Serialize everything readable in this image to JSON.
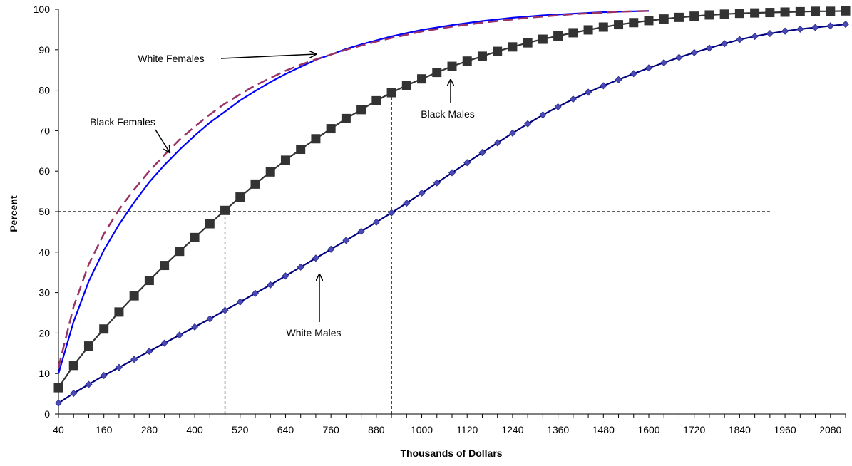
{
  "chart_data": {
    "type": "line",
    "xlabel": "Thousands of Dollars",
    "ylabel": "Percent",
    "xlim": [
      40,
      2120
    ],
    "ylim": [
      0,
      100
    ],
    "x_ticks": [
      40,
      160,
      280,
      400,
      520,
      640,
      760,
      880,
      1000,
      1120,
      1240,
      1360,
      1480,
      1600,
      1720,
      1840,
      1960,
      2080
    ],
    "y_ticks": [
      0,
      10,
      20,
      30,
      40,
      50,
      60,
      70,
      80,
      90,
      100
    ],
    "grid": false,
    "legend": "none",
    "series": [
      {
        "name": "White Females",
        "color": "#0000ff",
        "style": "solid",
        "marker": "none",
        "x": [
          40,
          80,
          120,
          160,
          200,
          240,
          280,
          320,
          360,
          400,
          440,
          480,
          520,
          560,
          600,
          640,
          680,
          720,
          760,
          800,
          840,
          880,
          920,
          960,
          1000,
          1040,
          1080,
          1120,
          1160,
          1200,
          1240,
          1280,
          1320,
          1360,
          1400,
          1440,
          1480,
          1520,
          1560,
          1600
        ],
        "y": [
          10,
          22.8,
          32.8,
          40.5,
          46.8,
          52.3,
          57.3,
          61.5,
          65.3,
          68.8,
          72,
          74.7,
          77.5,
          79.8,
          82,
          84,
          85.8,
          87.5,
          88.8,
          90.2,
          91.3,
          92.3,
          93.3,
          94.1,
          94.9,
          95.5,
          96.1,
          96.6,
          97.1,
          97.5,
          97.9,
          98.2,
          98.5,
          98.7,
          98.9,
          99.1,
          99.3,
          99.4,
          99.5,
          99.6
        ]
      },
      {
        "name": "Black Females",
        "color": "#993366",
        "style": "dashed",
        "marker": "none",
        "x": [
          40,
          80,
          120,
          160,
          200,
          240,
          280,
          320,
          360,
          400,
          440,
          480,
          520,
          560,
          600,
          640,
          680,
          720,
          760,
          800,
          840,
          880,
          920,
          960,
          1000,
          1040,
          1080,
          1120,
          1160,
          1200,
          1240,
          1280,
          1320,
          1360,
          1400,
          1440,
          1480,
          1520,
          1560,
          1600
        ],
        "y": [
          11.5,
          26.5,
          37,
          44.5,
          50.5,
          55.5,
          60,
          64,
          67.8,
          71,
          74,
          76.7,
          79,
          81.2,
          83,
          84.8,
          86.3,
          87.6,
          88.8,
          90,
          91,
          92,
          92.9,
          93.7,
          94.5,
          95.1,
          95.7,
          96.2,
          96.7,
          97.1,
          97.5,
          97.9,
          98.2,
          98.5,
          98.8,
          99,
          99.2,
          99.4,
          99.5,
          99.6
        ]
      },
      {
        "name": "Black Males",
        "color": "#333333",
        "style": "solid",
        "marker": "square",
        "x": [
          40,
          80,
          120,
          160,
          200,
          240,
          280,
          320,
          360,
          400,
          440,
          480,
          520,
          560,
          600,
          640,
          680,
          720,
          760,
          800,
          840,
          880,
          920,
          960,
          1000,
          1040,
          1080,
          1120,
          1160,
          1200,
          1240,
          1280,
          1320,
          1360,
          1400,
          1440,
          1480,
          1520,
          1560,
          1600,
          1640,
          1680,
          1720,
          1760,
          1800,
          1840,
          1880,
          1920,
          1960,
          2000,
          2040,
          2080,
          2120
        ],
        "y": [
          6.5,
          12,
          16.8,
          21,
          25.2,
          29.2,
          33,
          36.7,
          40.2,
          43.6,
          47,
          50.3,
          53.6,
          56.8,
          59.8,
          62.7,
          65.4,
          68,
          70.5,
          73,
          75.2,
          77.4,
          79.4,
          81.2,
          82.8,
          84.4,
          85.9,
          87.2,
          88.4,
          89.6,
          90.7,
          91.7,
          92.6,
          93.4,
          94.2,
          94.9,
          95.6,
          96.2,
          96.7,
          97.2,
          97.6,
          98,
          98.3,
          98.6,
          98.8,
          99,
          99.1,
          99.2,
          99.3,
          99.4,
          99.5,
          99.5,
          99.6
        ]
      },
      {
        "name": "White Males",
        "color": "#000080",
        "style": "solid",
        "marker": "diamond",
        "x": [
          40,
          80,
          120,
          160,
          200,
          240,
          280,
          320,
          360,
          400,
          440,
          480,
          520,
          560,
          600,
          640,
          680,
          720,
          760,
          800,
          840,
          880,
          920,
          960,
          1000,
          1040,
          1080,
          1120,
          1160,
          1200,
          1240,
          1280,
          1320,
          1360,
          1400,
          1440,
          1480,
          1520,
          1560,
          1600,
          1640,
          1680,
          1720,
          1760,
          1800,
          1840,
          1880,
          1920,
          1960,
          2000,
          2040,
          2080,
          2120
        ],
        "y": [
          2.7,
          5.1,
          7.3,
          9.5,
          11.5,
          13.5,
          15.5,
          17.5,
          19.5,
          21.5,
          23.5,
          25.6,
          27.7,
          29.8,
          31.9,
          34.1,
          36.3,
          38.5,
          40.7,
          42.9,
          45.1,
          47.4,
          49.7,
          52.1,
          54.6,
          57.1,
          59.6,
          62.1,
          64.6,
          67,
          69.4,
          71.7,
          73.9,
          75.9,
          77.8,
          79.5,
          81.1,
          82.6,
          84.1,
          85.5,
          86.8,
          88.1,
          89.3,
          90.4,
          91.5,
          92.5,
          93.3,
          94,
          94.6,
          95.1,
          95.5,
          95.9,
          96.3
        ]
      }
    ],
    "reference_lines": [
      {
        "orientation": "horizontal",
        "y": 50,
        "x_from": 40,
        "x_to": 1920
      },
      {
        "orientation": "vertical",
        "x": 480,
        "y_from": 0,
        "y_to": 50
      },
      {
        "orientation": "vertical",
        "x": 920,
        "y_from": 0,
        "y_to": 79
      }
    ],
    "annotations": [
      {
        "text": "White Females",
        "series": "White Females"
      },
      {
        "text": "Black Females",
        "series": "Black Females"
      },
      {
        "text": "Black Males",
        "series": "Black Males"
      },
      {
        "text": "White Males",
        "series": "White Males"
      }
    ]
  }
}
